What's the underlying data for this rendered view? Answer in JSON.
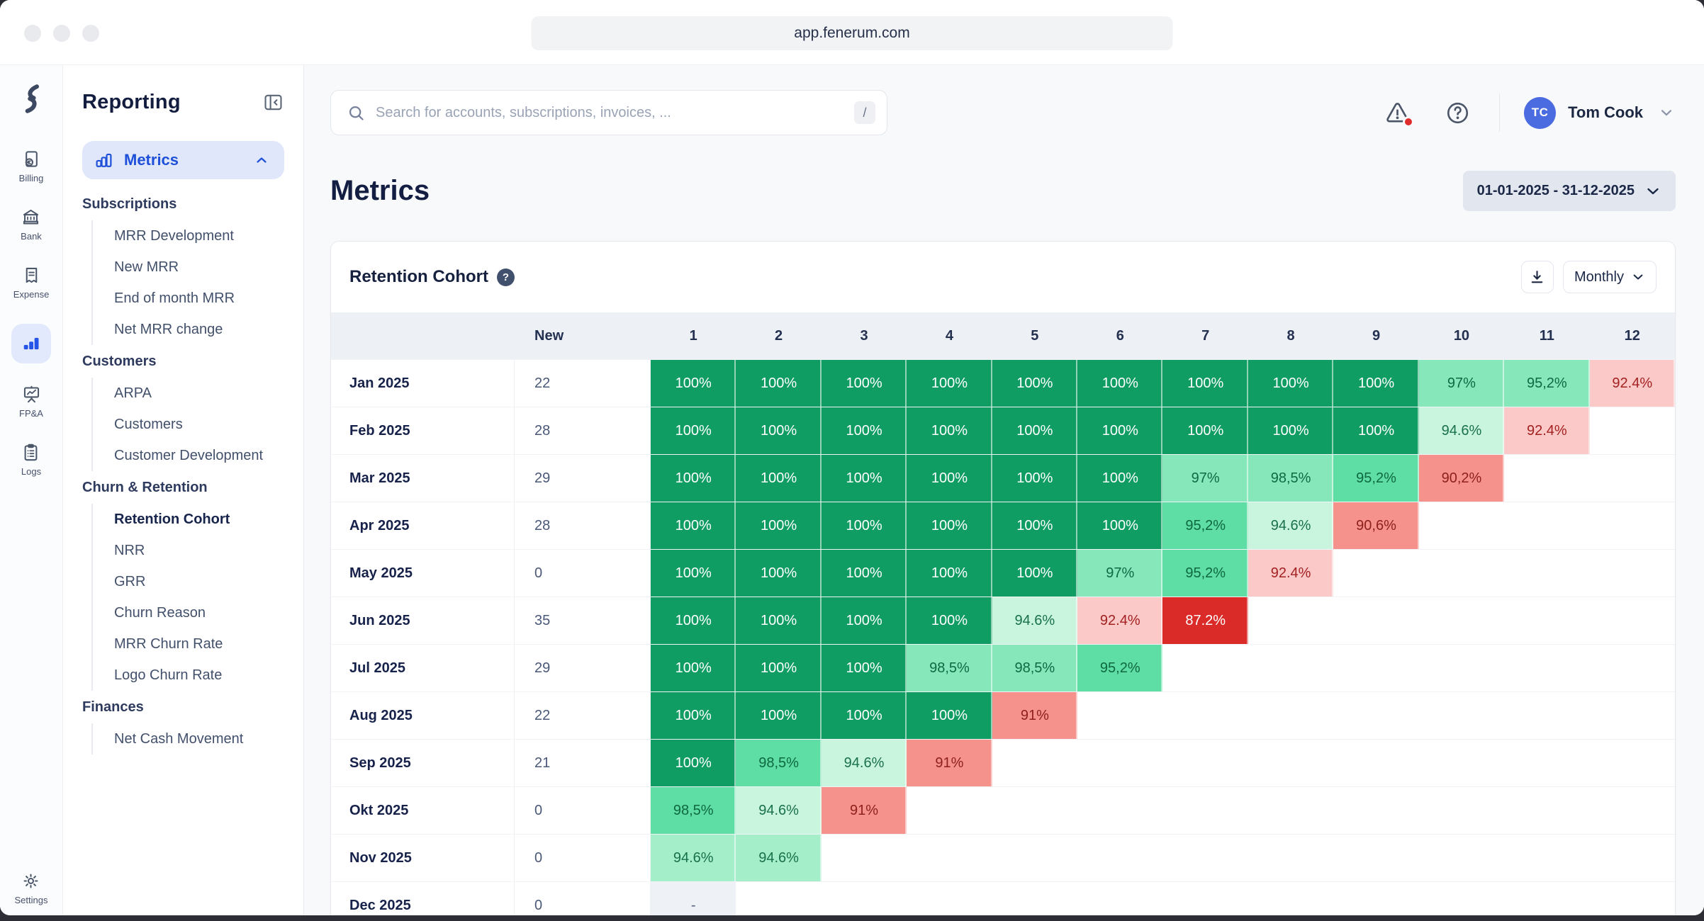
{
  "chrome": {
    "url": "app.fenerum.com"
  },
  "rail": {
    "items": [
      {
        "label": "Billing",
        "icon": "billing-document-euro-icon",
        "active": false
      },
      {
        "label": "Bank",
        "icon": "bank-building-icon",
        "active": false
      },
      {
        "label": "Expense",
        "icon": "expense-receipt-icon",
        "active": false
      },
      {
        "label": "",
        "icon": "bar-chart-icon",
        "active": true
      },
      {
        "label": "FP&A",
        "icon": "presentation-chart-icon",
        "active": false
      },
      {
        "label": "Logs",
        "icon": "clipboard-list-icon",
        "active": false
      }
    ],
    "settings_label": "Settings"
  },
  "sidebar": {
    "title": "Reporting",
    "metrics_label": "Metrics",
    "active_item": "Retention Cohort",
    "sections": [
      {
        "label": "Subscriptions",
        "items": [
          "MRR Development",
          "New MRR",
          "End of month MRR",
          "Net MRR change"
        ]
      },
      {
        "label": "Customers",
        "items": [
          "ARPA",
          "Customers",
          "Customer Development"
        ]
      },
      {
        "label": "Churn & Retention",
        "items": [
          "Retention Cohort",
          "NRR",
          "GRR",
          "Churn Reason",
          "MRR Churn Rate",
          "Logo Churn Rate"
        ]
      },
      {
        "label": "Finances",
        "items": [
          "Net Cash Movement"
        ]
      }
    ]
  },
  "topbar": {
    "search_placeholder": "Search for accounts, subscriptions, invoices, ...",
    "shortcut_key": "/",
    "user": {
      "initials": "TC",
      "name": "Tom Cook"
    }
  },
  "page": {
    "title": "Metrics",
    "date_range": "01-01-2025 - 31-12-2025"
  },
  "card": {
    "title": "Retention Cohort",
    "period_label": "Monthly"
  },
  "colors": {
    "accent_blue": "#1d4fd8",
    "avatar_blue": "#4b6be0",
    "alert_red": "#e02b2b",
    "green_dark": "#0f9d63",
    "red_strong": "#da2b29"
  },
  "chart_data": {
    "type": "heatmap",
    "title": "Retention Cohort",
    "columns": [
      "New",
      "1",
      "2",
      "3",
      "4",
      "5",
      "6",
      "7",
      "8",
      "9",
      "10",
      "11",
      "12"
    ],
    "palette": {
      "g100": {
        "bg": "#0f9d63",
        "fg": "#ffffff"
      },
      "gA": {
        "bg": "#86e7bb",
        "fg": "#0f6a44"
      },
      "gB": {
        "bg": "#5edda4",
        "fg": "#0e6841"
      },
      "gC": {
        "bg": "#c9f4de",
        "fg": "#19714b"
      },
      "gD": {
        "bg": "#a4eec9",
        "fg": "#19714b"
      },
      "pA": {
        "bg": "#fbc9c8",
        "fg": "#a42121"
      },
      "pB": {
        "bg": "#f4928b",
        "fg": "#8e1f1a"
      },
      "rA": {
        "bg": "#da2b29",
        "fg": "#ffffff"
      },
      "na": {
        "bg": "#eef1f5",
        "fg": "#55607a"
      }
    },
    "rows": [
      {
        "month": "Jan 2025",
        "new": "22",
        "cells": [
          [
            "100%",
            "g100"
          ],
          [
            "100%",
            "g100"
          ],
          [
            "100%",
            "g100"
          ],
          [
            "100%",
            "g100"
          ],
          [
            "100%",
            "g100"
          ],
          [
            "100%",
            "g100"
          ],
          [
            "100%",
            "g100"
          ],
          [
            "100%",
            "g100"
          ],
          [
            "100%",
            "g100"
          ],
          [
            "97%",
            "gA"
          ],
          [
            "95,2%",
            "gA"
          ],
          [
            "92.4%",
            "pA"
          ]
        ]
      },
      {
        "month": "Feb 2025",
        "new": "28",
        "cells": [
          [
            "100%",
            "g100"
          ],
          [
            "100%",
            "g100"
          ],
          [
            "100%",
            "g100"
          ],
          [
            "100%",
            "g100"
          ],
          [
            "100%",
            "g100"
          ],
          [
            "100%",
            "g100"
          ],
          [
            "100%",
            "g100"
          ],
          [
            "100%",
            "g100"
          ],
          [
            "100%",
            "g100"
          ],
          [
            "94.6%",
            "gC"
          ],
          [
            "92.4%",
            "pA"
          ]
        ]
      },
      {
        "month": "Mar 2025",
        "new": "29",
        "cells": [
          [
            "100%",
            "g100"
          ],
          [
            "100%",
            "g100"
          ],
          [
            "100%",
            "g100"
          ],
          [
            "100%",
            "g100"
          ],
          [
            "100%",
            "g100"
          ],
          [
            "100%",
            "g100"
          ],
          [
            "97%",
            "gA"
          ],
          [
            "98,5%",
            "gA"
          ],
          [
            "95,2%",
            "gB"
          ],
          [
            "90,2%",
            "pB"
          ]
        ]
      },
      {
        "month": "Apr 2025",
        "new": "28",
        "cells": [
          [
            "100%",
            "g100"
          ],
          [
            "100%",
            "g100"
          ],
          [
            "100%",
            "g100"
          ],
          [
            "100%",
            "g100"
          ],
          [
            "100%",
            "g100"
          ],
          [
            "100%",
            "g100"
          ],
          [
            "95,2%",
            "gB"
          ],
          [
            "94.6%",
            "gC"
          ],
          [
            "90,6%",
            "pB"
          ]
        ]
      },
      {
        "month": "May 2025",
        "new": "0",
        "cells": [
          [
            "100%",
            "g100"
          ],
          [
            "100%",
            "g100"
          ],
          [
            "100%",
            "g100"
          ],
          [
            "100%",
            "g100"
          ],
          [
            "100%",
            "g100"
          ],
          [
            "97%",
            "gA"
          ],
          [
            "95,2%",
            "gB"
          ],
          [
            "92.4%",
            "pA"
          ]
        ]
      },
      {
        "month": "Jun 2025",
        "new": "35",
        "cells": [
          [
            "100%",
            "g100"
          ],
          [
            "100%",
            "g100"
          ],
          [
            "100%",
            "g100"
          ],
          [
            "100%",
            "g100"
          ],
          [
            "94.6%",
            "gC"
          ],
          [
            "92.4%",
            "pA"
          ],
          [
            "87.2%",
            "rA"
          ]
        ]
      },
      {
        "month": "Jul 2025",
        "new": "29",
        "cells": [
          [
            "100%",
            "g100"
          ],
          [
            "100%",
            "g100"
          ],
          [
            "100%",
            "g100"
          ],
          [
            "98,5%",
            "gA"
          ],
          [
            "98,5%",
            "gA"
          ],
          [
            "95,2%",
            "gB"
          ]
        ]
      },
      {
        "month": "Aug 2025",
        "new": "22",
        "cells": [
          [
            "100%",
            "g100"
          ],
          [
            "100%",
            "g100"
          ],
          [
            "100%",
            "g100"
          ],
          [
            "100%",
            "g100"
          ],
          [
            "91%",
            "pB"
          ]
        ]
      },
      {
        "month": "Sep 2025",
        "new": "21",
        "cells": [
          [
            "100%",
            "g100"
          ],
          [
            "98,5%",
            "gB"
          ],
          [
            "94.6%",
            "gC"
          ],
          [
            "91%",
            "pB"
          ]
        ]
      },
      {
        "month": "Okt 2025",
        "new": "0",
        "cells": [
          [
            "98,5%",
            "gB"
          ],
          [
            "94.6%",
            "gC"
          ],
          [
            "91%",
            "pB"
          ]
        ]
      },
      {
        "month": "Nov 2025",
        "new": "0",
        "cells": [
          [
            "94.6%",
            "gD"
          ],
          [
            "94.6%",
            "gD"
          ]
        ]
      },
      {
        "month": "Dec 2025",
        "new": "0",
        "cells": [
          [
            "-",
            "na"
          ]
        ]
      }
    ]
  }
}
